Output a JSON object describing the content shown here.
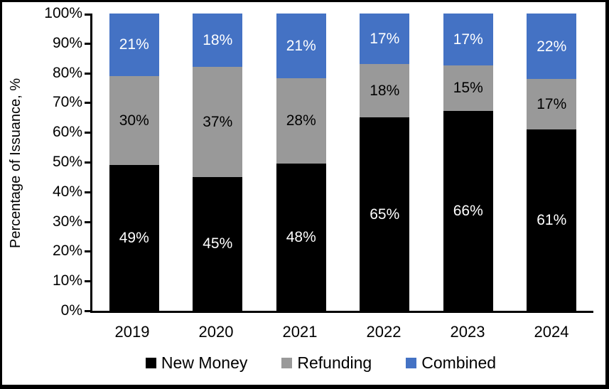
{
  "chart_data": {
    "type": "bar",
    "subtype": "stacked-100",
    "title": "",
    "ylabel": "Percentage of Issuance, %",
    "xlabel": "",
    "categories": [
      "2019",
      "2020",
      "2021",
      "2022",
      "2023",
      "2024"
    ],
    "series": [
      {
        "name": "New Money",
        "color": "#000000",
        "label_color": "#ffffff",
        "values": [
          49,
          45,
          48,
          65,
          66,
          61
        ]
      },
      {
        "name": "Refunding",
        "color": "#999999",
        "label_color": "#000000",
        "values": [
          30,
          37,
          28,
          18,
          15,
          17
        ]
      },
      {
        "name": "Combined",
        "color": "#4472C4",
        "label_color": "#ffffff",
        "values": [
          21,
          18,
          21,
          17,
          17,
          22
        ]
      }
    ],
    "value_suffix": "%",
    "ylim": [
      0,
      100
    ],
    "y_ticks": [
      "0%",
      "10%",
      "20%",
      "30%",
      "40%",
      "50%",
      "60%",
      "70%",
      "80%",
      "90%",
      "100%"
    ],
    "grid": false,
    "legend_position": "bottom",
    "axis_color": "#000000",
    "background_color": "#ffffff"
  }
}
